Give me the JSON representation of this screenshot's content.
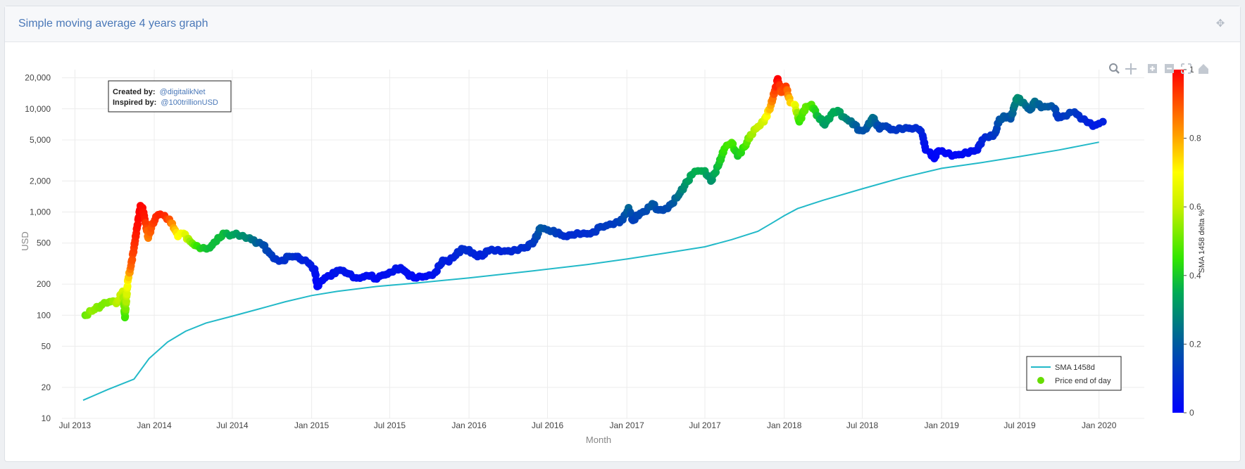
{
  "panel": {
    "title": "Simple moving average 4 years graph",
    "move_icon": "move-arrows-icon"
  },
  "toolbar": {
    "icons": [
      "zoom-icon",
      "pan-icon",
      "zoom-in-icon",
      "zoom-out-icon",
      "autoscale-icon",
      "reset-axes-icon"
    ]
  },
  "annotation": {
    "created_label": "Created by:",
    "created_value": "@digitalikNet",
    "inspired_label": "Inspired by:",
    "inspired_value": "@100trillionUSD",
    "link_color": "#4a78b8"
  },
  "colorscale": [
    "#0000ff",
    "#005aa0",
    "#00aa55",
    "#32e600",
    "#c8f000",
    "#ffff00",
    "#ff9600",
    "#ff0000"
  ],
  "chart_data": {
    "type": "scatter",
    "title": "",
    "xlabel": "Month",
    "ylabel": "USD",
    "y_scale": "log",
    "ylim": [
      10,
      24000
    ],
    "xlim": [
      "2013-06-01",
      "2020-04-15"
    ],
    "x_ticks": [
      "Jul 2013",
      "Jan 2014",
      "Jul 2014",
      "Jan 2015",
      "Jul 2015",
      "Jan 2016",
      "Jul 2016",
      "Jan 2017",
      "Jul 2017",
      "Jan 2018",
      "Jul 2018",
      "Jan 2019",
      "Jul 2019",
      "Jan 2020"
    ],
    "y_ticks": [
      "10",
      "20",
      "50",
      "100",
      "200",
      "500",
      "1,000",
      "2,000",
      "5,000",
      "10,000",
      "20,000"
    ],
    "grid": true,
    "legend_position": "bottom-right",
    "colorbar": {
      "title": "SMA 1458 delta %",
      "ticks": [
        "0",
        "0.2",
        "0.4",
        "0.6",
        "0.8",
        "1"
      ]
    },
    "series": [
      {
        "name": "SMA 1458d",
        "type": "line",
        "color": "#22b9c8",
        "points": [
          [
            "2013-07-20",
            15
          ],
          [
            "2013-09-15",
            19
          ],
          [
            "2013-11-15",
            24
          ],
          [
            "2013-12-20",
            38
          ],
          [
            "2014-02-01",
            55
          ],
          [
            "2014-03-15",
            70
          ],
          [
            "2014-05-01",
            84
          ],
          [
            "2014-07-01",
            98
          ],
          [
            "2014-09-01",
            115
          ],
          [
            "2014-11-01",
            135
          ],
          [
            "2015-01-01",
            155
          ],
          [
            "2015-03-01",
            170
          ],
          [
            "2015-06-01",
            190
          ],
          [
            "2015-09-01",
            205
          ],
          [
            "2016-01-01",
            230
          ],
          [
            "2016-06-01",
            270
          ],
          [
            "2016-10-01",
            310
          ],
          [
            "2017-01-01",
            350
          ],
          [
            "2017-04-01",
            400
          ],
          [
            "2017-07-01",
            460
          ],
          [
            "2017-09-01",
            540
          ],
          [
            "2017-11-01",
            650
          ],
          [
            "2017-12-01",
            770
          ],
          [
            "2018-01-01",
            920
          ],
          [
            "2018-02-01",
            1080
          ],
          [
            "2018-04-01",
            1300
          ],
          [
            "2018-07-01",
            1680
          ],
          [
            "2018-10-01",
            2150
          ],
          [
            "2019-01-01",
            2650
          ],
          [
            "2019-04-01",
            3000
          ],
          [
            "2019-07-01",
            3450
          ],
          [
            "2019-10-01",
            4000
          ],
          [
            "2020-01-01",
            4750
          ]
        ]
      },
      {
        "name": "Price end of day",
        "type": "markers",
        "color_by": "SMA 1458 delta %",
        "legend_color": "#66dd00",
        "points": [
          [
            "2013-07-25",
            100,
            0.5
          ],
          [
            "2013-08-10",
            110,
            0.55
          ],
          [
            "2013-09-01",
            125,
            0.52
          ],
          [
            "2013-09-20",
            135,
            0.53
          ],
          [
            "2013-10-05",
            130,
            0.58
          ],
          [
            "2013-10-20",
            170,
            0.62
          ],
          [
            "2013-10-25",
            95,
            0.45
          ],
          [
            "2013-11-01",
            220,
            0.72
          ],
          [
            "2013-11-08",
            300,
            0.88
          ],
          [
            "2013-11-15",
            450,
            0.93
          ],
          [
            "2013-11-22",
            700,
            0.98
          ],
          [
            "2013-11-30",
            1150,
            1.0
          ],
          [
            "2013-12-05",
            1100,
            0.99
          ],
          [
            "2013-12-10",
            850,
            0.97
          ],
          [
            "2013-12-18",
            560,
            0.85
          ],
          [
            "2013-12-25",
            700,
            0.9
          ],
          [
            "2014-01-05",
            900,
            0.95
          ],
          [
            "2014-01-15",
            950,
            0.96
          ],
          [
            "2014-01-25",
            920,
            0.95
          ],
          [
            "2014-02-05",
            850,
            0.9
          ],
          [
            "2014-02-15",
            700,
            0.8
          ],
          [
            "2014-02-25",
            580,
            0.7
          ],
          [
            "2014-03-10",
            620,
            0.68
          ],
          [
            "2014-03-25",
            520,
            0.55
          ],
          [
            "2014-04-10",
            470,
            0.45
          ],
          [
            "2014-04-25",
            450,
            0.4
          ],
          [
            "2014-05-10",
            450,
            0.38
          ],
          [
            "2014-05-25",
            520,
            0.38
          ],
          [
            "2014-06-10",
            620,
            0.38
          ],
          [
            "2014-06-25",
            590,
            0.35
          ],
          [
            "2014-07-10",
            620,
            0.33
          ],
          [
            "2014-07-25",
            590,
            0.3
          ],
          [
            "2014-08-10",
            560,
            0.28
          ],
          [
            "2014-08-25",
            500,
            0.22
          ],
          [
            "2014-09-10",
            480,
            0.18
          ],
          [
            "2014-09-25",
            400,
            0.15
          ],
          [
            "2014-10-10",
            350,
            0.12
          ],
          [
            "2014-10-25",
            340,
            0.1
          ],
          [
            "2014-11-10",
            370,
            0.12
          ],
          [
            "2014-11-25",
            370,
            0.1
          ],
          [
            "2014-12-10",
            340,
            0.08
          ],
          [
            "2014-12-25",
            320,
            0.07
          ],
          [
            "2015-01-08",
            280,
            0.05
          ],
          [
            "2015-01-14",
            190,
            0.01
          ],
          [
            "2015-01-20",
            210,
            0.02
          ],
          [
            "2015-02-01",
            230,
            0.03
          ],
          [
            "2015-02-15",
            240,
            0.03
          ],
          [
            "2015-03-01",
            270,
            0.05
          ],
          [
            "2015-03-15",
            270,
            0.05
          ],
          [
            "2015-04-01",
            250,
            0.04
          ],
          [
            "2015-04-15",
            230,
            0.03
          ],
          [
            "2015-05-01",
            235,
            0.03
          ],
          [
            "2015-05-15",
            240,
            0.03
          ],
          [
            "2015-06-01",
            225,
            0.02
          ],
          [
            "2015-06-15",
            245,
            0.03
          ],
          [
            "2015-07-01",
            260,
            0.04
          ],
          [
            "2015-07-15",
            285,
            0.05
          ],
          [
            "2015-08-01",
            275,
            0.04
          ],
          [
            "2015-08-15",
            240,
            0.03
          ],
          [
            "2015-09-01",
            230,
            0.02
          ],
          [
            "2015-09-15",
            235,
            0.02
          ],
          [
            "2015-10-01",
            245,
            0.03
          ],
          [
            "2015-10-15",
            260,
            0.04
          ],
          [
            "2015-11-01",
            340,
            0.08
          ],
          [
            "2015-11-15",
            330,
            0.06
          ],
          [
            "2015-12-01",
            380,
            0.08
          ],
          [
            "2015-12-15",
            440,
            0.1
          ],
          [
            "2016-01-01",
            430,
            0.1
          ],
          [
            "2016-01-15",
            385,
            0.08
          ],
          [
            "2016-02-01",
            375,
            0.07
          ],
          [
            "2016-02-15",
            420,
            0.09
          ],
          [
            "2016-03-01",
            420,
            0.09
          ],
          [
            "2016-03-15",
            415,
            0.08
          ],
          [
            "2016-04-01",
            420,
            0.09
          ],
          [
            "2016-04-15",
            430,
            0.09
          ],
          [
            "2016-05-01",
            450,
            0.1
          ],
          [
            "2016-05-15",
            455,
            0.1
          ],
          [
            "2016-06-01",
            530,
            0.13
          ],
          [
            "2016-06-15",
            700,
            0.2
          ],
          [
            "2016-07-01",
            670,
            0.17
          ],
          [
            "2016-07-15",
            660,
            0.15
          ],
          [
            "2016-08-01",
            600,
            0.12
          ],
          [
            "2016-08-15",
            580,
            0.1
          ],
          [
            "2016-09-01",
            600,
            0.1
          ],
          [
            "2016-09-15",
            610,
            0.1
          ],
          [
            "2016-10-01",
            615,
            0.1
          ],
          [
            "2016-10-15",
            640,
            0.11
          ],
          [
            "2016-11-01",
            720,
            0.13
          ],
          [
            "2016-11-15",
            740,
            0.13
          ],
          [
            "2016-12-01",
            760,
            0.13
          ],
          [
            "2016-12-15",
            790,
            0.14
          ],
          [
            "2016-12-30",
            960,
            0.18
          ],
          [
            "2017-01-05",
            1100,
            0.22
          ],
          [
            "2017-01-15",
            830,
            0.14
          ],
          [
            "2017-02-01",
            970,
            0.16
          ],
          [
            "2017-02-15",
            1020,
            0.16
          ],
          [
            "2017-03-01",
            1200,
            0.2
          ],
          [
            "2017-03-15",
            1050,
            0.16
          ],
          [
            "2017-04-01",
            1080,
            0.16
          ],
          [
            "2017-04-15",
            1200,
            0.18
          ],
          [
            "2017-05-01",
            1450,
            0.24
          ],
          [
            "2017-05-15",
            1800,
            0.3
          ],
          [
            "2017-06-01",
            2300,
            0.35
          ],
          [
            "2017-06-15",
            2500,
            0.36
          ],
          [
            "2017-07-01",
            2500,
            0.35
          ],
          [
            "2017-07-15",
            2000,
            0.3
          ],
          [
            "2017-08-01",
            2800,
            0.38
          ],
          [
            "2017-08-15",
            4100,
            0.45
          ],
          [
            "2017-09-01",
            4700,
            0.48
          ],
          [
            "2017-09-15",
            3500,
            0.4
          ],
          [
            "2017-10-01",
            4300,
            0.45
          ],
          [
            "2017-10-15",
            5600,
            0.55
          ],
          [
            "2017-11-01",
            6700,
            0.6
          ],
          [
            "2017-11-15",
            7500,
            0.62
          ],
          [
            "2017-12-01",
            10800,
            0.8
          ],
          [
            "2017-12-10",
            15000,
            0.92
          ],
          [
            "2017-12-17",
            19500,
            1.0
          ],
          [
            "2017-12-25",
            14500,
            0.9
          ],
          [
            "2018-01-05",
            16500,
            0.93
          ],
          [
            "2018-01-15",
            11500,
            0.75
          ],
          [
            "2018-01-25",
            11000,
            0.7
          ],
          [
            "2018-02-05",
            7500,
            0.45
          ],
          [
            "2018-02-20",
            10500,
            0.5
          ],
          [
            "2018-03-05",
            11000,
            0.48
          ],
          [
            "2018-03-20",
            8500,
            0.38
          ],
          [
            "2018-04-05",
            7000,
            0.32
          ],
          [
            "2018-04-20",
            8800,
            0.35
          ],
          [
            "2018-05-05",
            9600,
            0.35
          ],
          [
            "2018-05-20",
            8300,
            0.3
          ],
          [
            "2018-06-05",
            7600,
            0.25
          ],
          [
            "2018-06-25",
            6200,
            0.18
          ],
          [
            "2018-07-10",
            6400,
            0.18
          ],
          [
            "2018-07-25",
            8200,
            0.25
          ],
          [
            "2018-08-10",
            6400,
            0.15
          ],
          [
            "2018-08-25",
            6800,
            0.15
          ],
          [
            "2018-09-10",
            6300,
            0.12
          ],
          [
            "2018-09-25",
            6500,
            0.12
          ],
          [
            "2018-10-10",
            6550,
            0.12
          ],
          [
            "2018-10-25",
            6400,
            0.1
          ],
          [
            "2018-11-10",
            6300,
            0.1
          ],
          [
            "2018-11-18",
            5500,
            0.07
          ],
          [
            "2018-11-25",
            4000,
            0.03
          ],
          [
            "2018-12-05",
            3800,
            0.02
          ],
          [
            "2018-12-15",
            3300,
            0.01
          ],
          [
            "2018-12-25",
            3900,
            0.02
          ],
          [
            "2019-01-10",
            3700,
            0.02
          ],
          [
            "2019-01-25",
            3500,
            0.01
          ],
          [
            "2019-02-10",
            3600,
            0.02
          ],
          [
            "2019-02-25",
            3800,
            0.03
          ],
          [
            "2019-03-10",
            3900,
            0.03
          ],
          [
            "2019-03-25",
            4000,
            0.04
          ],
          [
            "2019-04-05",
            5000,
            0.08
          ],
          [
            "2019-04-20",
            5300,
            0.1
          ],
          [
            "2019-05-05",
            5800,
            0.12
          ],
          [
            "2019-05-15",
            7900,
            0.18
          ],
          [
            "2019-05-25",
            8500,
            0.2
          ],
          [
            "2019-06-10",
            8000,
            0.18
          ],
          [
            "2019-06-20",
            11000,
            0.26
          ],
          [
            "2019-06-26",
            12800,
            0.3
          ],
          [
            "2019-07-10",
            11500,
            0.26
          ],
          [
            "2019-07-25",
            9800,
            0.2
          ],
          [
            "2019-08-05",
            11800,
            0.24
          ],
          [
            "2019-08-20",
            10300,
            0.2
          ],
          [
            "2019-09-05",
            10500,
            0.2
          ],
          [
            "2019-09-20",
            10100,
            0.18
          ],
          [
            "2019-09-28",
            8200,
            0.12
          ],
          [
            "2019-10-10",
            8500,
            0.12
          ],
          [
            "2019-10-25",
            9200,
            0.14
          ],
          [
            "2019-11-05",
            9300,
            0.13
          ],
          [
            "2019-11-20",
            8000,
            0.1
          ],
          [
            "2019-12-05",
            7400,
            0.08
          ],
          [
            "2019-12-18",
            6800,
            0.06
          ],
          [
            "2020-01-01",
            7200,
            0.06
          ],
          [
            "2020-01-10",
            7500,
            0.07
          ]
        ]
      }
    ]
  }
}
